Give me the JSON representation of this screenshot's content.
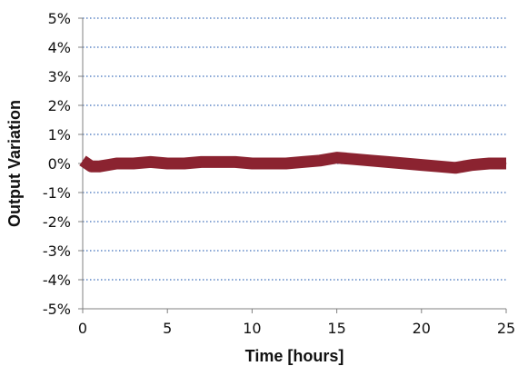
{
  "chart_data": {
    "type": "line",
    "title": "",
    "xlabel": "Time [hours]",
    "ylabel": "Output Variation",
    "xlim": [
      0,
      25
    ],
    "ylim": [
      -5,
      5
    ],
    "x_ticks": [
      0,
      5,
      10,
      15,
      20,
      25
    ],
    "x_tick_labels": [
      "0",
      "5",
      "10",
      "15",
      "20",
      "25"
    ],
    "y_ticks": [
      5,
      4,
      3,
      2,
      1,
      0,
      -1,
      -2,
      -3,
      -4,
      -5
    ],
    "y_tick_labels": [
      "5%",
      "4%",
      "3%",
      "2%",
      "1%",
      "0%",
      "-1%",
      "-2%",
      "-3%",
      "-4%",
      "-5%"
    ],
    "grid": true,
    "legend": "none",
    "colors": {
      "series": "#8b2330",
      "grid": "#3f6fba",
      "axis": "#808080"
    },
    "series": [
      {
        "x": [
          0,
          0.5,
          1,
          1.5,
          2,
          3,
          4,
          5,
          6,
          7,
          8,
          9,
          10,
          11,
          12,
          13,
          14,
          15,
          16,
          17,
          18,
          19,
          20,
          21,
          22,
          22.5,
          23,
          24,
          25
        ],
        "y": [
          0.1,
          -0.1,
          -0.1,
          -0.05,
          0,
          0,
          0.05,
          0,
          0,
          0.05,
          0.05,
          0.05,
          0,
          0,
          0,
          0.05,
          0.1,
          0.2,
          0.15,
          0.1,
          0.05,
          0,
          -0.05,
          -0.1,
          -0.15,
          -0.1,
          -0.05,
          0,
          0
        ]
      }
    ]
  }
}
